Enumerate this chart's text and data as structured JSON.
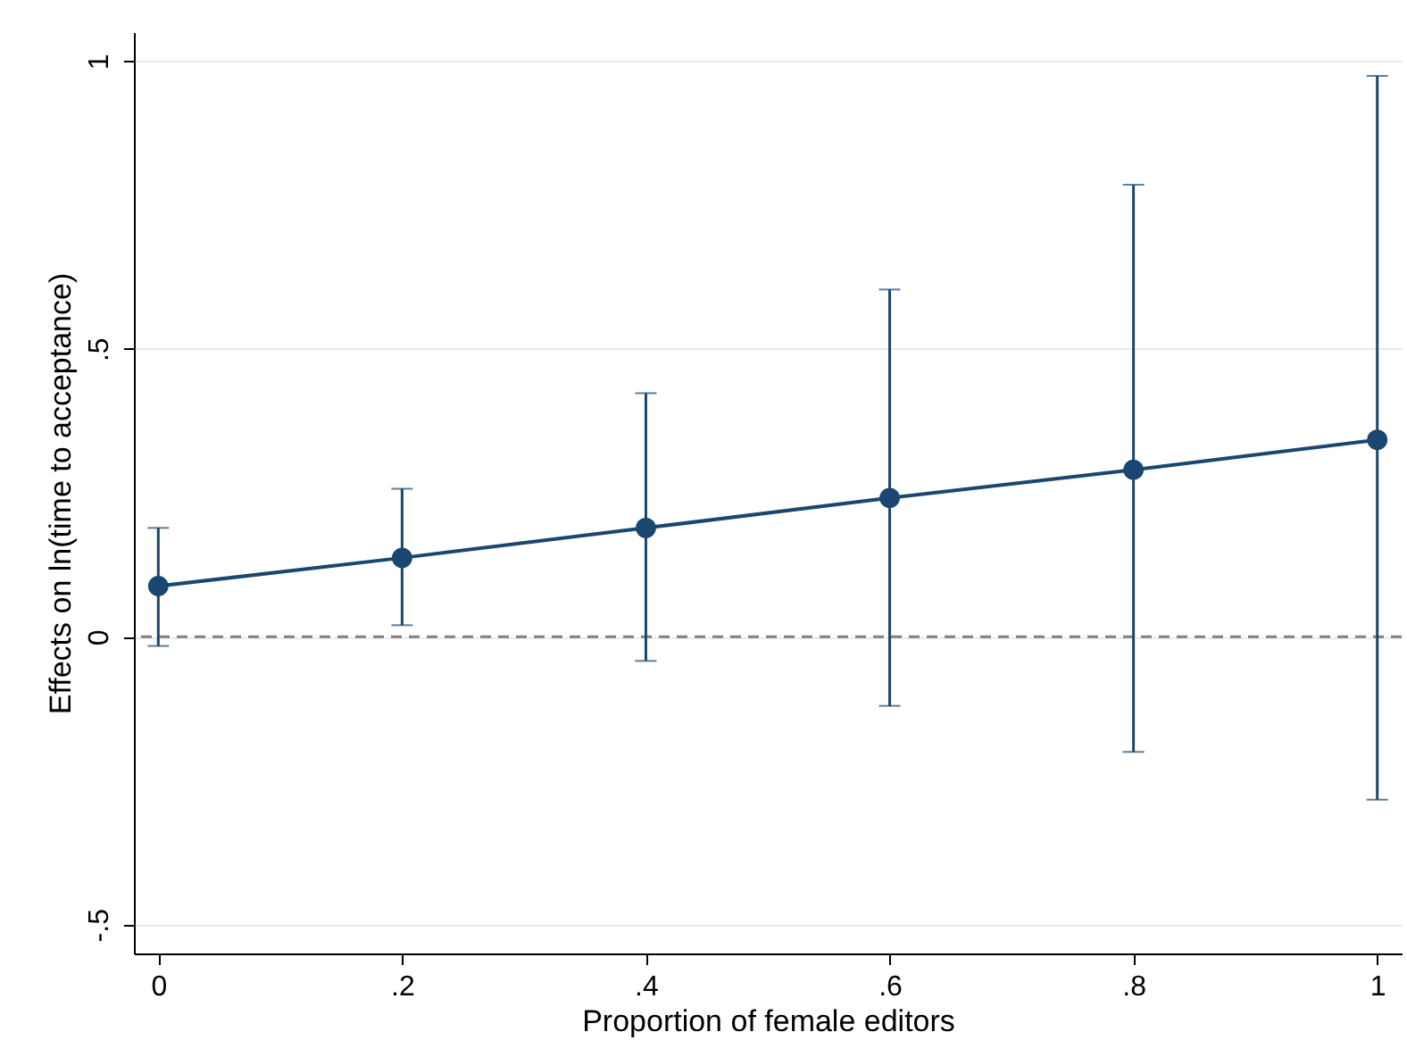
{
  "chart_data": {
    "type": "line",
    "xlabel": "Proportion of female editors",
    "ylabel": "Effects on ln(time to acceptance)",
    "x": [
      0,
      0.2,
      0.4,
      0.6,
      0.8,
      1
    ],
    "series": [
      {
        "color": "#1a476f",
        "values": [
          0.088,
          0.137,
          0.189,
          0.241,
          0.29,
          0.342
        ],
        "errors": [
          [
            -0.016,
            0.189
          ],
          [
            0.02,
            0.257
          ],
          [
            -0.042,
            0.423
          ],
          [
            -0.12,
            0.603
          ],
          [
            -0.2,
            0.785
          ],
          [
            -0.283,
            0.974
          ]
        ]
      }
    ],
    "xlim": [
      -0.02,
      1.02
    ],
    "xticks": [
      0,
      {
        "value": 0.2,
        "label": ".2"
      },
      {
        "value": 0.4,
        "label": ".4"
      },
      {
        "value": 0.6,
        "label": ".6"
      },
      {
        "value": 0.8,
        "label": ".8"
      },
      1
    ],
    "ylim": [
      -0.55,
      1.05
    ],
    "yticks": [
      {
        "value": -0.5,
        "label": "-.5"
      },
      0,
      {
        "value": 0.5,
        "label": ".5"
      },
      1
    ],
    "ref_lines": [
      {
        "axis": "y",
        "value": 0,
        "color": "#808080",
        "line_style": "dashed"
      }
    ],
    "grid": "y",
    "marker": "circle",
    "line_style": "solid"
  }
}
